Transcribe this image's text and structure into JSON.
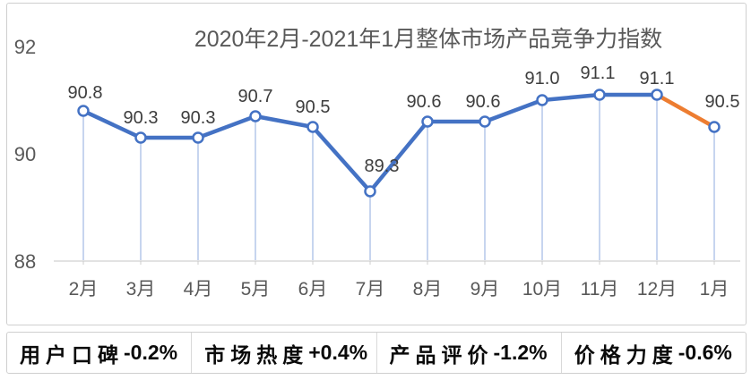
{
  "chart_data": {
    "type": "line",
    "title": "2020年2月-2021年1月整体市场产品竞争力指数",
    "categories": [
      "2月",
      "3月",
      "4月",
      "5月",
      "6月",
      "7月",
      "8月",
      "9月",
      "10月",
      "11月",
      "12月",
      "1月"
    ],
    "values": [
      90.8,
      90.3,
      90.3,
      90.7,
      90.5,
      89.3,
      90.6,
      90.6,
      91.0,
      91.1,
      91.1,
      90.5
    ],
    "point_labels": [
      "90.8",
      "90.3",
      "90.3",
      "90.7",
      "90.5",
      "89.3",
      "90.6",
      "90.6",
      "91.0",
      "91.1",
      "91.1",
      "90.5"
    ],
    "xlabel": "",
    "ylabel": "",
    "ylim": [
      88,
      92
    ],
    "y_ticks": [
      92,
      90,
      88
    ],
    "grid": false,
    "legend": "none",
    "highlight_last_segment": true,
    "colors": {
      "line": "#4472C4",
      "last_segment": "#ED7D31",
      "marker_fill": "#FFFFFF",
      "marker_stroke": "#4472C4",
      "drop_line": "#C7D5EF",
      "axis_line": "#D9D9D9",
      "tick_mark": "#CCCCCC",
      "data_label": "#3D3D3D",
      "axis_text": "#595959",
      "title_text": "#595959"
    }
  },
  "footer": {
    "metrics": [
      {
        "label": "用户口碑",
        "value": "-0.2%"
      },
      {
        "label": "市场热度",
        "value": "+0.4%"
      },
      {
        "label": "产品评价",
        "value": "-1.2%"
      },
      {
        "label": "价格力度",
        "value": "-0.6%"
      }
    ]
  }
}
